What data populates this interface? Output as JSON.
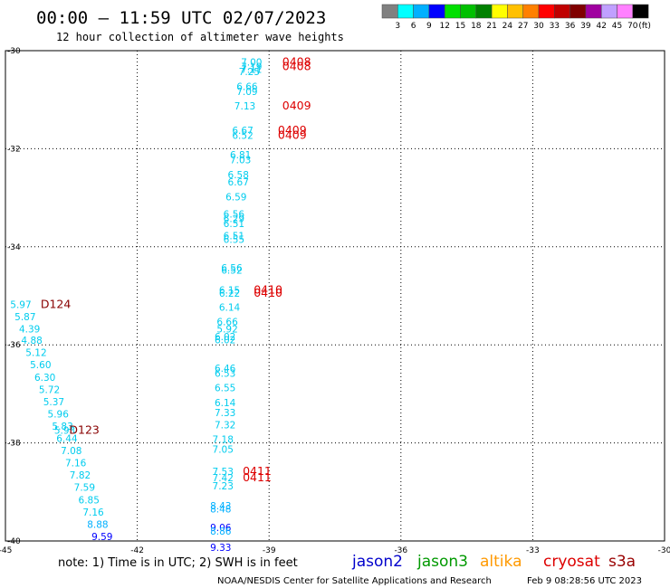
{
  "title": "00:00 — 11:59 UTC 02/07/2023",
  "subtitle": "12 hour collection of altimeter wave heights",
  "legend": {
    "colors": [
      "#808080",
      "#00ffff",
      "#00b0ff",
      "#0000ff",
      "#00e000",
      "#00c000",
      "#008000",
      "#ffff00",
      "#ffc000",
      "#ff8000",
      "#ff0000",
      "#c00000",
      "#800000",
      "#a000a0",
      "#c0a0ff",
      "#ff80ff",
      "#000000"
    ],
    "values": [
      "3",
      "6",
      "9",
      "12",
      "15",
      "18",
      "21",
      "24",
      "27",
      "30",
      "33",
      "36",
      "39",
      "42",
      "45",
      "70"
    ],
    "unit": "(ft)"
  },
  "note": "note: 1) Time is in UTC; 2) SWH is in feet",
  "satellites": [
    {
      "name": "jason2",
      "color": "#0000cc"
    },
    {
      "name": "jason3",
      "color": "#009900"
    },
    {
      "name": "altika",
      "color": "#ff9900"
    },
    {
      "name": "cryosat",
      "color": "#dd0000"
    },
    {
      "name": "s3a",
      "color": "#990000"
    }
  ],
  "credit": "NOAA/NESDIS Center for Satellite Applications and Research",
  "timestamp": "Feb  9 08:28:56 UTC 2023",
  "chart_data": {
    "type": "scatter",
    "xlim": [
      -45,
      -30
    ],
    "ylim": [
      -40,
      -30
    ],
    "xticks": [
      "-45",
      "-42",
      "-39",
      "-36",
      "-33",
      "-30"
    ],
    "yticks": [
      "-30",
      "-32",
      "-34",
      "-36",
      "-38",
      "-40"
    ],
    "grid": true,
    "points": [
      {
        "x": -39.4,
        "y": -30.3,
        "v": "7.00",
        "c": "#00ccee"
      },
      {
        "x": -39.4,
        "y": -30.4,
        "v": "7.19",
        "c": "#00ccee"
      },
      {
        "x": -39.4,
        "y": -30.45,
        "v": "7.11",
        "c": "#00ccee"
      },
      {
        "x": -39.45,
        "y": -30.5,
        "v": "7.25",
        "c": "#00ccee"
      },
      {
        "x": -39.5,
        "y": -30.8,
        "v": "6.66",
        "c": "#00ccee"
      },
      {
        "x": -39.5,
        "y": -30.9,
        "v": "7.09",
        "c": "#00ccee"
      },
      {
        "x": -39.55,
        "y": -31.2,
        "v": "7.13",
        "c": "#00ccee"
      },
      {
        "x": -39.6,
        "y": -31.7,
        "v": "6.67",
        "c": "#00ccee"
      },
      {
        "x": -39.6,
        "y": -31.8,
        "v": "6.52",
        "c": "#00ccee"
      },
      {
        "x": -39.65,
        "y": -32.2,
        "v": "6.81",
        "c": "#00ccee"
      },
      {
        "x": -39.65,
        "y": -32.3,
        "v": "7.03",
        "c": "#00ccee"
      },
      {
        "x": -39.7,
        "y": -32.6,
        "v": "6.58",
        "c": "#00ccee"
      },
      {
        "x": -39.7,
        "y": -32.75,
        "v": "6.67",
        "c": "#00ccee"
      },
      {
        "x": -39.75,
        "y": -33.05,
        "v": "6.59",
        "c": "#00ccee"
      },
      {
        "x": -39.8,
        "y": -33.4,
        "v": "6.56",
        "c": "#00ccee"
      },
      {
        "x": -39.8,
        "y": -33.5,
        "v": "6.29",
        "c": "#00ccee"
      },
      {
        "x": -39.8,
        "y": -33.6,
        "v": "6.51",
        "c": "#00ccee"
      },
      {
        "x": -39.8,
        "y": -33.85,
        "v": "6.51",
        "c": "#00ccee"
      },
      {
        "x": -39.8,
        "y": -33.92,
        "v": "6.55",
        "c": "#00ccee"
      },
      {
        "x": -39.85,
        "y": -34.5,
        "v": "6.56",
        "c": "#00ccee"
      },
      {
        "x": -39.85,
        "y": -34.55,
        "v": "6.52",
        "c": "#00ccee"
      },
      {
        "x": -39.9,
        "y": -34.95,
        "v": "6.15",
        "c": "#00ccee"
      },
      {
        "x": -39.9,
        "y": -35.02,
        "v": "6.22",
        "c": "#00ccee"
      },
      {
        "x": -39.9,
        "y": -35.3,
        "v": "6.14",
        "c": "#00ccee"
      },
      {
        "x": -39.95,
        "y": -35.6,
        "v": "6.66",
        "c": "#00ccee"
      },
      {
        "x": -39.95,
        "y": -35.75,
        "v": "5.92",
        "c": "#00ccee"
      },
      {
        "x": -40.0,
        "y": -35.9,
        "v": "6.02",
        "c": "#00ccee"
      },
      {
        "x": -40.0,
        "y": -35.97,
        "v": "6.02",
        "c": "#00ccee"
      },
      {
        "x": -40.0,
        "y": -36.55,
        "v": "6.46",
        "c": "#00ccee"
      },
      {
        "x": -40.0,
        "y": -36.65,
        "v": "6.53",
        "c": "#00ccee"
      },
      {
        "x": -40.0,
        "y": -36.95,
        "v": "6.55",
        "c": "#00ccee"
      },
      {
        "x": -40.0,
        "y": -37.25,
        "v": "6.14",
        "c": "#00ccee"
      },
      {
        "x": -40.0,
        "y": -37.45,
        "v": "7.33",
        "c": "#00ccee"
      },
      {
        "x": -40.0,
        "y": -37.7,
        "v": "7.32",
        "c": "#00ccee"
      },
      {
        "x": -40.05,
        "y": -38.0,
        "v": "7.18",
        "c": "#00ccee"
      },
      {
        "x": -40.05,
        "y": -38.2,
        "v": "7.05",
        "c": "#00ccee"
      },
      {
        "x": -40.05,
        "y": -38.65,
        "v": "7.53",
        "c": "#00ccee"
      },
      {
        "x": -40.05,
        "y": -38.78,
        "v": "7.42",
        "c": "#00ccee"
      },
      {
        "x": -40.05,
        "y": -38.95,
        "v": "7.23",
        "c": "#00ccee"
      },
      {
        "x": -40.1,
        "y": -39.35,
        "v": "8.43",
        "c": "#00b0ff"
      },
      {
        "x": -40.1,
        "y": -39.42,
        "v": "8.48",
        "c": "#00b0ff"
      },
      {
        "x": -40.1,
        "y": -39.8,
        "v": "9.06",
        "c": "#0000ff"
      },
      {
        "x": -40.1,
        "y": -39.87,
        "v": "8.86",
        "c": "#00b0ff"
      },
      {
        "x": -40.1,
        "y": -40.2,
        "v": "9.33",
        "c": "#0000ff"
      },
      {
        "x": -44.65,
        "y": -35.25,
        "v": "5.97",
        "c": "#00ccee"
      },
      {
        "x": -44.55,
        "y": -35.5,
        "v": "5.87",
        "c": "#00ccee"
      },
      {
        "x": -44.45,
        "y": -35.75,
        "v": "4.39",
        "c": "#00ccee"
      },
      {
        "x": -44.4,
        "y": -35.98,
        "v": "4.88",
        "c": "#00ccee"
      },
      {
        "x": -44.3,
        "y": -36.23,
        "v": "5.12",
        "c": "#00ccee"
      },
      {
        "x": -44.2,
        "y": -36.48,
        "v": "5.60",
        "c": "#00ccee"
      },
      {
        "x": -44.1,
        "y": -36.73,
        "v": "6.30",
        "c": "#00ccee"
      },
      {
        "x": -44.0,
        "y": -36.98,
        "v": "5.72",
        "c": "#00ccee"
      },
      {
        "x": -43.9,
        "y": -37.23,
        "v": "5.37",
        "c": "#00ccee"
      },
      {
        "x": -43.8,
        "y": -37.48,
        "v": "5.96",
        "c": "#00ccee"
      },
      {
        "x": -43.7,
        "y": -37.73,
        "v": "5.83",
        "c": "#00ccee"
      },
      {
        "x": -43.65,
        "y": -37.81,
        "v": "5.93",
        "c": "#00ccee"
      },
      {
        "x": -43.6,
        "y": -37.98,
        "v": "6.44",
        "c": "#00ccee"
      },
      {
        "x": -43.5,
        "y": -38.23,
        "v": "7.08",
        "c": "#00ccee"
      },
      {
        "x": -43.4,
        "y": -38.48,
        "v": "7.16",
        "c": "#00ccee"
      },
      {
        "x": -43.3,
        "y": -38.73,
        "v": "7.82",
        "c": "#00ccee"
      },
      {
        "x": -43.2,
        "y": -38.98,
        "v": "7.59",
        "c": "#00ccee"
      },
      {
        "x": -43.1,
        "y": -39.23,
        "v": "6.85",
        "c": "#00ccee"
      },
      {
        "x": -43.0,
        "y": -39.48,
        "v": "7.16",
        "c": "#00ccee"
      },
      {
        "x": -42.9,
        "y": -39.73,
        "v": "8.88",
        "c": "#00b0ff"
      },
      {
        "x": -42.8,
        "y": -39.98,
        "v": "9.59",
        "c": "#0000ff"
      }
    ],
    "passes": [
      {
        "x": -38.7,
        "y": -30.3,
        "label": "0408",
        "c": "#dd0000"
      },
      {
        "x": -38.7,
        "y": -30.4,
        "label": "0408",
        "c": "#dd0000"
      },
      {
        "x": -38.7,
        "y": -31.2,
        "label": "0409",
        "c": "#dd0000"
      },
      {
        "x": -38.8,
        "y": -31.7,
        "label": "0409",
        "c": "#dd0000"
      },
      {
        "x": -38.8,
        "y": -31.8,
        "label": "0409",
        "c": "#dd0000"
      },
      {
        "x": -39.35,
        "y": -34.95,
        "label": "0410",
        "c": "#dd0000"
      },
      {
        "x": -39.35,
        "y": -35.02,
        "label": "0410",
        "c": "#dd0000"
      },
      {
        "x": -44.2,
        "y": -35.25,
        "label": "D124",
        "c": "#880000"
      },
      {
        "x": -43.55,
        "y": -37.81,
        "label": "D123",
        "c": "#880000"
      },
      {
        "x": -39.6,
        "y": -38.65,
        "label": "0411",
        "c": "#dd0000"
      },
      {
        "x": -39.6,
        "y": -38.78,
        "label": "0411",
        "c": "#dd0000"
      }
    ]
  }
}
